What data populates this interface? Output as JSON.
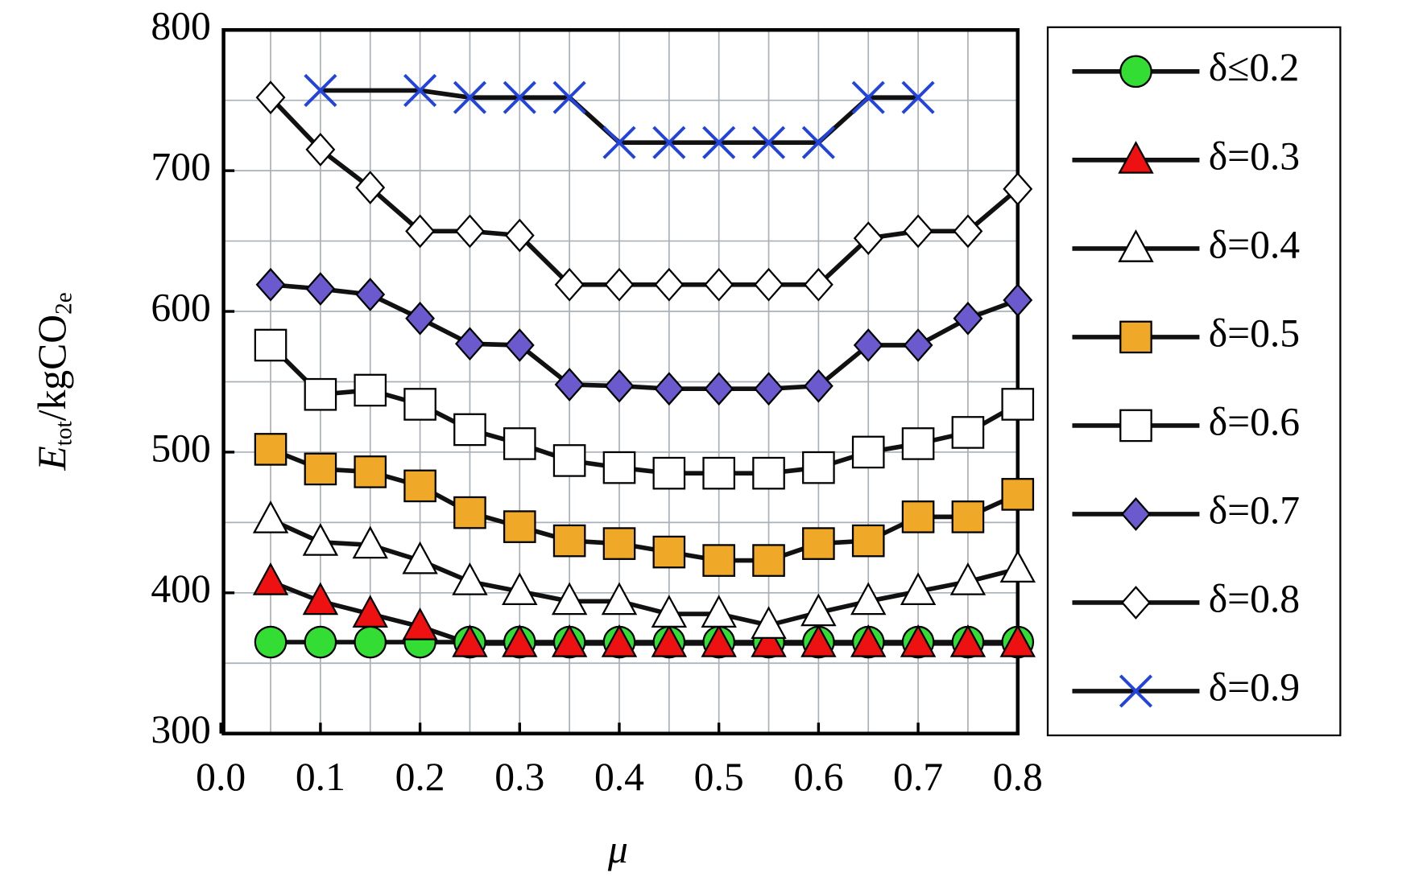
{
  "chart_data": {
    "type": "line",
    "xlabel": "μ",
    "ylabel": [
      "E",
      "tot",
      "/kgCO",
      "2e"
    ],
    "x": [
      0.05,
      0.1,
      0.15,
      0.2,
      0.25,
      0.3,
      0.35,
      0.4,
      0.45,
      0.5,
      0.55,
      0.6,
      0.65,
      0.7,
      0.75,
      0.8
    ],
    "xlim": [
      0,
      0.8
    ],
    "ylim": [
      300,
      800
    ],
    "xticks": [
      {
        "value": 0,
        "label": "0.0"
      },
      0.1,
      0.2,
      0.3,
      0.4,
      0.5,
      0.6,
      0.7,
      0.8
    ],
    "yticks": [
      300,
      400,
      500,
      600,
      700,
      800
    ],
    "xgrid": [
      0.05,
      0.1,
      0.15,
      0.2,
      0.25,
      0.3,
      0.35,
      0.4,
      0.45,
      0.5,
      0.55,
      0.6,
      0.65,
      0.7,
      0.75
    ],
    "ygrid": [
      350,
      400,
      450,
      500,
      550,
      600,
      650,
      700,
      750
    ],
    "grid": true,
    "legend": "right",
    "series": [
      {
        "name": "δ≤0.2",
        "marker": "circle",
        "color": "#33dd33",
        "values": [
          365,
          365,
          365,
          365,
          365,
          365,
          365,
          365,
          365,
          365,
          365,
          365,
          365,
          365,
          365,
          365
        ]
      },
      {
        "name": "δ=0.3",
        "marker": "triangle",
        "color": "#ee1111",
        "values": [
          408,
          394,
          385,
          376,
          364,
          364,
          364,
          364,
          364,
          364,
          364,
          364,
          364,
          364,
          364,
          364
        ]
      },
      {
        "name": "δ=0.4",
        "marker": "triangle",
        "color": "#ffffff",
        "values": [
          452,
          436,
          434,
          423,
          408,
          401,
          394,
          394,
          385,
          385,
          377,
          386,
          394,
          401,
          408,
          417
        ]
      },
      {
        "name": "δ=0.5",
        "marker": "square",
        "color": "#f0a828",
        "values": [
          502,
          488,
          486,
          476,
          457,
          447,
          437,
          435,
          429,
          423,
          423,
          435,
          437,
          454,
          454,
          470
        ]
      },
      {
        "name": "δ=0.6",
        "marker": "square",
        "color": "#ffffff",
        "values": [
          576,
          541,
          544,
          534,
          516,
          506,
          494,
          489,
          485,
          485,
          485,
          489,
          500,
          506,
          514,
          534
        ]
      },
      {
        "name": "δ=0.7",
        "marker": "diamond",
        "color": "#6a5acd",
        "values": [
          619,
          616,
          612,
          595,
          577,
          576,
          548,
          547,
          545,
          545,
          545,
          547,
          576,
          576,
          595,
          608
        ]
      },
      {
        "name": "δ=0.8",
        "marker": "diamond",
        "color": "#ffffff",
        "values": [
          752,
          715,
          688,
          657,
          657,
          654,
          619,
          619,
          619,
          619,
          619,
          619,
          652,
          657,
          657,
          687
        ]
      },
      {
        "name": "δ=0.9",
        "marker": "x",
        "color": "#2244dd",
        "x": [
          0.1,
          0.2,
          0.25,
          0.3,
          0.35,
          0.4,
          0.45,
          0.5,
          0.55,
          0.6,
          0.65,
          0.7
        ],
        "values": [
          757,
          757,
          752,
          752,
          752,
          720,
          720,
          720,
          720,
          720,
          752,
          752
        ]
      }
    ]
  }
}
